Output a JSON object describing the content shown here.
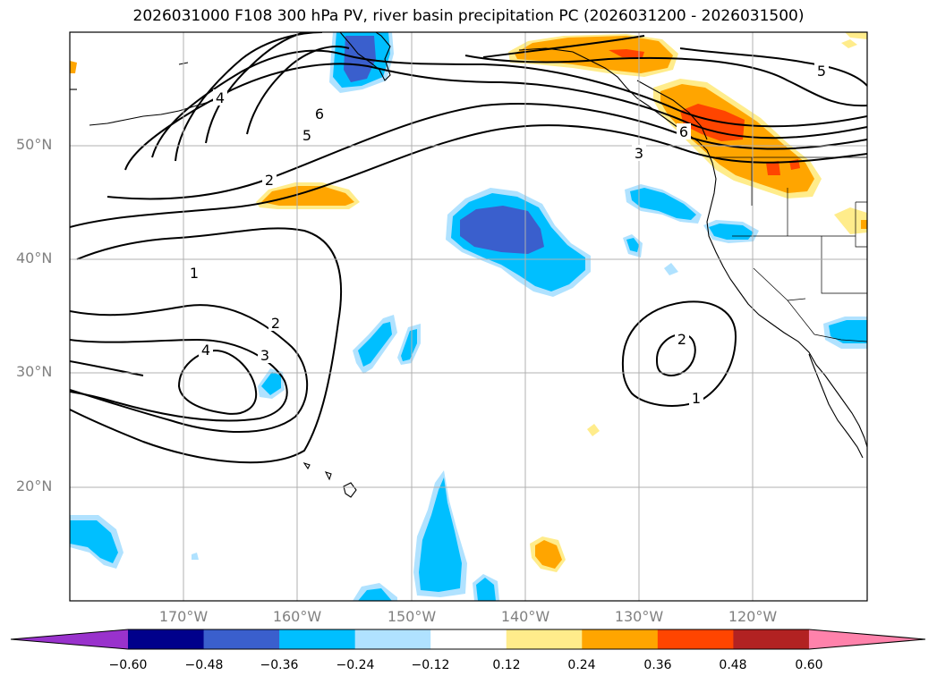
{
  "title": "2026031000 F108 300 hPa PV, river basin precipitation PC (2026031200 - 2026031500)",
  "axes": {
    "lat_labels": [
      "50°N",
      "40°N",
      "30°N",
      "20°N"
    ],
    "lon_labels": [
      "170°W",
      "160°W",
      "150°W",
      "140°W",
      "130°W",
      "120°W"
    ]
  },
  "contour_labels": {
    "pv_north": [
      "4",
      "6",
      "5",
      "2",
      "3",
      "6",
      "5"
    ],
    "pv_south": [
      "1",
      "2",
      "3",
      "4"
    ],
    "pv_east": [
      "2",
      "1"
    ]
  },
  "colorbar": {
    "ticks": [
      "−0.60",
      "−0.48",
      "−0.36",
      "−0.24",
      "−0.12",
      "0.12",
      "0.24",
      "0.36",
      "0.48",
      "0.60"
    ],
    "colors": [
      "#9932cc",
      "#00008b",
      "#3a5fcd",
      "#00bfff",
      "#b0e2ff",
      "#ffffff",
      "#ffec8b",
      "#ffa500",
      "#ff4500",
      "#b22222",
      "#ff82ab"
    ]
  },
  "chart_data": {
    "type": "heatmap",
    "title": "2026031000 F108 300 hPa PV, river basin precipitation PC (2026031200 - 2026031500)",
    "field_contours": "300 hPa PV",
    "field_shaded": "river basin precipitation PC",
    "lat_range": [
      10,
      60
    ],
    "lon_range": [
      -180,
      -110
    ],
    "colorbar_levels": [
      -0.6,
      -0.48,
      -0.36,
      -0.24,
      -0.12,
      0.12,
      0.24,
      0.36,
      0.48,
      0.6
    ],
    "pv_contour_levels": [
      1,
      2,
      3,
      4,
      5,
      6
    ]
  }
}
